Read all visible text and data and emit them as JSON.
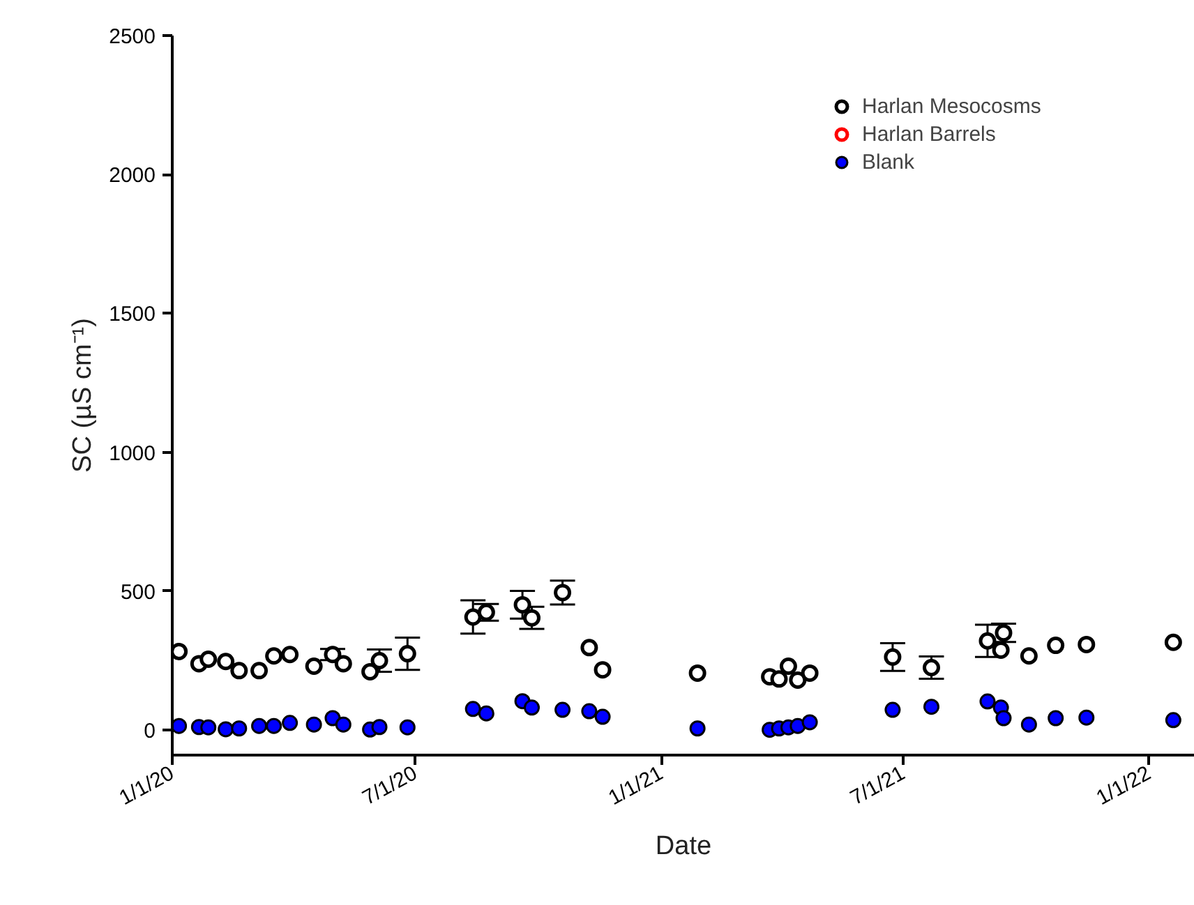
{
  "chart_data": {
    "type": "scatter",
    "xlabel": "Date",
    "ylabel": "SC (µS cm⁻¹)",
    "xlim": [
      "2020-01-01",
      "2022-02-04"
    ],
    "xticks": [
      {
        "value": "2020-01-01",
        "label": "1/1/20"
      },
      {
        "value": "2020-07-01",
        "label": "7/1/20"
      },
      {
        "value": "2021-01-01",
        "label": "1/1/21"
      },
      {
        "value": "2021-07-01",
        "label": "7/1/21"
      },
      {
        "value": "2022-01-01",
        "label": "1/1/22"
      }
    ],
    "ylim": [
      -90,
      2500
    ],
    "yticks": [
      0,
      500,
      1000,
      1500,
      2000,
      2500
    ],
    "grid": false,
    "legend": "top right",
    "marker": "circle",
    "series": [
      {
        "name": "Harlan Mesocosms",
        "color": "#000000",
        "x": [
          "2020-01-06",
          "2020-01-21",
          "2020-01-28",
          "2020-02-10",
          "2020-02-20",
          "2020-03-06",
          "2020-03-17",
          "2020-03-29",
          "2020-04-16",
          "2020-04-30",
          "2020-05-08",
          "2020-05-28",
          "2020-06-04",
          "2020-06-25",
          "2020-08-13",
          "2020-08-23",
          "2020-09-19",
          "2020-09-26",
          "2020-10-19",
          "2020-11-08",
          "2020-11-18",
          "2021-01-28",
          "2021-03-23",
          "2021-03-30",
          "2021-04-06",
          "2021-04-13",
          "2021-04-22",
          "2021-06-23",
          "2021-07-22",
          "2021-09-02",
          "2021-09-12",
          "2021-09-14",
          "2021-10-03",
          "2021-10-23",
          "2021-11-15",
          "2022-01-19"
        ],
        "values": [
          283,
          239,
          255,
          247,
          214,
          214,
          267,
          272,
          230,
          272,
          239,
          210,
          250,
          275,
          407,
          424,
          451,
          404,
          495,
          297,
          217,
          205,
          192,
          184,
          230,
          180,
          205,
          263,
          225,
          321,
          288,
          350,
          267,
          305,
          308,
          316
        ],
        "errors": [
          null,
          null,
          null,
          null,
          null,
          null,
          null,
          null,
          null,
          20,
          null,
          null,
          40,
          58,
          60,
          30,
          50,
          40,
          43,
          null,
          null,
          null,
          null,
          null,
          null,
          null,
          null,
          50,
          40,
          58,
          null,
          33,
          null,
          null,
          null,
          null
        ]
      },
      {
        "name": "Harlan Barrels",
        "color": "#ff0000"
      },
      {
        "name": "Blank",
        "color": "#0000ff",
        "x": [
          "2020-01-06",
          "2020-01-21",
          "2020-01-28",
          "2020-02-10",
          "2020-02-20",
          "2020-03-06",
          "2020-03-17",
          "2020-03-29",
          "2020-04-16",
          "2020-04-30",
          "2020-05-08",
          "2020-05-28",
          "2020-06-04",
          "2020-06-25",
          "2020-08-13",
          "2020-08-23",
          "2020-09-19",
          "2020-09-26",
          "2020-10-19",
          "2020-11-08",
          "2020-11-18",
          "2021-01-28",
          "2021-03-23",
          "2021-03-30",
          "2021-04-06",
          "2021-04-13",
          "2021-04-22",
          "2021-06-23",
          "2021-07-22",
          "2021-09-02",
          "2021-09-12",
          "2021-09-14",
          "2021-10-03",
          "2021-10-23",
          "2021-11-15",
          "2022-01-19"
        ],
        "values": [
          15,
          11,
          10,
          3,
          6,
          15,
          15,
          26,
          20,
          43,
          20,
          2,
          11,
          10,
          76,
          60,
          104,
          81,
          73,
          68,
          48,
          6,
          1,
          6,
          10,
          15,
          28,
          73,
          84,
          103,
          81,
          43,
          20,
          43,
          45,
          36
        ]
      }
    ]
  }
}
